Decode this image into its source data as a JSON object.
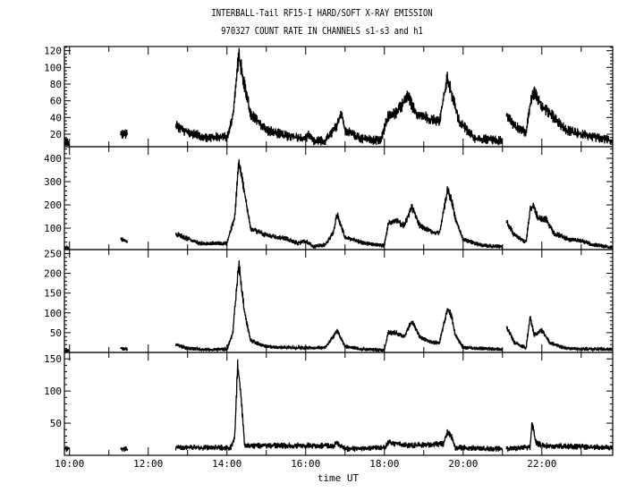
{
  "title": "INTERBALL-Tail RF15-I HARD/SOFT X-RAY EMISSION",
  "subtitle": "970327  COUNT RATE IN CHANNELS s1-s3 and h1",
  "chart_data": {
    "type": "line",
    "xlabel": "time UT",
    "xlim": [
      9.87,
      23.8
    ],
    "x_ticks": [
      {
        "value": 10,
        "label": "10:00"
      },
      {
        "value": 12,
        "label": "12:00"
      },
      {
        "value": 14,
        "label": "14:00"
      },
      {
        "value": 16,
        "label": "16:00"
      },
      {
        "value": 18,
        "label": "18:00"
      },
      {
        "value": 20,
        "label": "20:00"
      },
      {
        "value": 22,
        "label": "22:00"
      }
    ],
    "grid": false,
    "line_color": "#000000",
    "panels": [
      {
        "channel": "s1",
        "ylim": [
          5,
          125
        ],
        "y_ticks": [
          20,
          40,
          60,
          80,
          100,
          120
        ],
        "noise": 5,
        "segments": [
          [
            [
              9.87,
              10
            ],
            [
              9.98,
              10
            ]
          ],
          [
            [
              11.3,
              20
            ],
            [
              11.48,
              20
            ]
          ],
          [
            [
              12.7,
              30
            ],
            [
              13.0,
              22
            ],
            [
              13.5,
              16
            ],
            [
              14.0,
              17
            ],
            [
              14.15,
              40
            ],
            [
              14.3,
              115
            ],
            [
              14.4,
              90
            ],
            [
              14.6,
              45
            ],
            [
              15.0,
              25
            ],
            [
              15.5,
              18
            ],
            [
              16.0,
              15
            ],
            [
              16.1,
              20
            ],
            [
              16.2,
              12
            ],
            [
              16.5,
              12
            ],
            [
              16.8,
              30
            ],
            [
              16.9,
              45
            ],
            [
              17.0,
              25
            ],
            [
              17.4,
              15
            ],
            [
              17.9,
              12
            ],
            [
              18.1,
              42
            ],
            [
              18.3,
              45
            ],
            [
              18.6,
              65
            ],
            [
              18.8,
              45
            ],
            [
              19.2,
              38
            ],
            [
              19.4,
              35
            ],
            [
              19.6,
              88
            ],
            [
              19.7,
              70
            ],
            [
              19.9,
              35
            ],
            [
              20.3,
              15
            ],
            [
              21.0,
              12
            ]
          ],
          [
            [
              21.1,
              45
            ],
            [
              21.3,
              30
            ],
            [
              21.6,
              22
            ],
            [
              21.7,
              55
            ],
            [
              21.8,
              70
            ],
            [
              22.0,
              55
            ],
            [
              22.3,
              40
            ],
            [
              22.6,
              25
            ],
            [
              23.0,
              20
            ],
            [
              23.8,
              12
            ]
          ]
        ]
      },
      {
        "channel": "s2",
        "ylim": [
          8,
          450
        ],
        "y_ticks": [
          100,
          200,
          300,
          400
        ],
        "noise": 8,
        "segments": [
          [
            [
              9.87,
              15
            ],
            [
              9.98,
              15
            ]
          ],
          [
            [
              11.3,
              55
            ],
            [
              11.48,
              40
            ]
          ],
          [
            [
              12.7,
              75
            ],
            [
              13.0,
              55
            ],
            [
              13.3,
              35
            ],
            [
              14.0,
              35
            ],
            [
              14.2,
              150
            ],
            [
              14.3,
              390
            ],
            [
              14.45,
              250
            ],
            [
              14.6,
              100
            ],
            [
              15.0,
              70
            ],
            [
              15.5,
              55
            ],
            [
              15.8,
              35
            ],
            [
              16.0,
              45
            ],
            [
              16.2,
              20
            ],
            [
              16.5,
              30
            ],
            [
              16.7,
              80
            ],
            [
              16.8,
              160
            ],
            [
              17.0,
              60
            ],
            [
              17.5,
              35
            ],
            [
              18.0,
              25
            ],
            [
              18.1,
              120
            ],
            [
              18.3,
              135
            ],
            [
              18.5,
              110
            ],
            [
              18.7,
              190
            ],
            [
              18.9,
              110
            ],
            [
              19.2,
              85
            ],
            [
              19.4,
              80
            ],
            [
              19.6,
              260
            ],
            [
              19.7,
              230
            ],
            [
              19.8,
              140
            ],
            [
              20.0,
              50
            ],
            [
              20.5,
              25
            ],
            [
              21.0,
              20
            ]
          ],
          [
            [
              21.1,
              130
            ],
            [
              21.3,
              70
            ],
            [
              21.6,
              40
            ],
            [
              21.7,
              180
            ],
            [
              21.8,
              200
            ],
            [
              21.9,
              140
            ],
            [
              22.1,
              140
            ],
            [
              22.3,
              80
            ],
            [
              22.7,
              50
            ],
            [
              23.0,
              45
            ],
            [
              23.3,
              30
            ],
            [
              23.8,
              18
            ]
          ]
        ]
      },
      {
        "channel": "s3",
        "ylim": [
          0,
          260
        ],
        "y_ticks": [
          50,
          100,
          150,
          200,
          250
        ],
        "noise": 4,
        "segments": [
          [
            [
              9.87,
              5
            ],
            [
              9.98,
              5
            ]
          ],
          [
            [
              11.3,
              10
            ],
            [
              11.48,
              8
            ]
          ],
          [
            [
              12.7,
              20
            ],
            [
              13.0,
              10
            ],
            [
              13.5,
              7
            ],
            [
              14.0,
              8
            ],
            [
              14.15,
              50
            ],
            [
              14.3,
              225
            ],
            [
              14.45,
              100
            ],
            [
              14.6,
              30
            ],
            [
              15.0,
              15
            ],
            [
              15.5,
              12
            ],
            [
              16.0,
              12
            ],
            [
              16.5,
              12
            ],
            [
              16.8,
              55
            ],
            [
              17.0,
              15
            ],
            [
              17.5,
              8
            ],
            [
              18.0,
              6
            ],
            [
              18.1,
              50
            ],
            [
              18.3,
              50
            ],
            [
              18.5,
              40
            ],
            [
              18.7,
              80
            ],
            [
              18.9,
              40
            ],
            [
              19.2,
              25
            ],
            [
              19.4,
              25
            ],
            [
              19.6,
              110
            ],
            [
              19.7,
              95
            ],
            [
              19.8,
              45
            ],
            [
              20.0,
              12
            ],
            [
              21.0,
              8
            ]
          ],
          [
            [
              21.1,
              65
            ],
            [
              21.3,
              25
            ],
            [
              21.6,
              12
            ],
            [
              21.7,
              90
            ],
            [
              21.8,
              45
            ],
            [
              22.0,
              55
            ],
            [
              22.2,
              25
            ],
            [
              22.6,
              10
            ],
            [
              23.8,
              8
            ]
          ]
        ]
      },
      {
        "channel": "h1",
        "ylim": [
          0,
          160
        ],
        "y_ticks": [
          50,
          100,
          150
        ],
        "noise": 4,
        "segments": [
          [
            [
              9.87,
              10
            ],
            [
              9.98,
              10
            ]
          ],
          [
            [
              11.3,
              10
            ],
            [
              11.48,
              10
            ]
          ],
          [
            [
              12.7,
              12
            ],
            [
              14.1,
              12
            ],
            [
              14.2,
              30
            ],
            [
              14.27,
              140
            ],
            [
              14.35,
              100
            ],
            [
              14.45,
              15
            ],
            [
              16.7,
              15
            ],
            [
              16.8,
              20
            ],
            [
              17.0,
              10
            ],
            [
              18.0,
              12
            ],
            [
              18.1,
              20
            ],
            [
              18.6,
              15
            ],
            [
              19.5,
              18
            ],
            [
              19.6,
              35
            ],
            [
              19.7,
              30
            ],
            [
              19.8,
              12
            ],
            [
              21.0,
              10
            ]
          ],
          [
            [
              21.1,
              10
            ],
            [
              21.7,
              12
            ],
            [
              21.75,
              50
            ],
            [
              21.85,
              20
            ],
            [
              22.0,
              15
            ],
            [
              23.8,
              12
            ]
          ]
        ]
      }
    ]
  }
}
